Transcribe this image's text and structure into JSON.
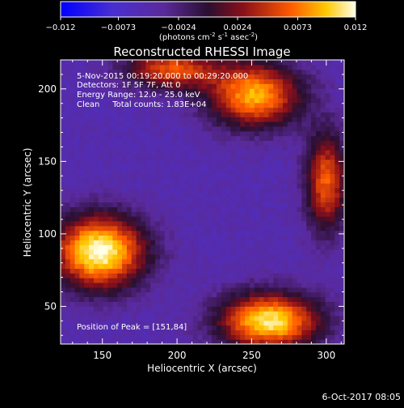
{
  "chart_data": {
    "type": "heatmap",
    "title": "Reconstructed RHESSI Image",
    "xlabel": "Heliocentric X (arcsec)",
    "ylabel": "Heliocentric Y (arcsec)",
    "xlim": [
      122,
      312
    ],
    "ylim": [
      24,
      220
    ],
    "xticks": [
      150,
      200,
      250,
      300
    ],
    "yticks": [
      50,
      100,
      150,
      200
    ],
    "colorbar": {
      "min": -0.012,
      "max": 0.012,
      "ticks": [
        "-0.012",
        "-0.0073",
        "-0.0024",
        "0.0024",
        "0.0073",
        "0.012"
      ],
      "unit_label": "(photons cm",
      "unit_exp1": "-2",
      "unit_mid": " s",
      "unit_exp2": "-1",
      "unit_mid2": " asec",
      "unit_exp3": "-2",
      "unit_end": ")"
    },
    "annotations": [
      "5-Nov-2015 00:19:20.000 to 00:29:20.000",
      "Detectors: 1F 5F 7F, Att 0",
      "Energy Range: 12.0 - 25.0 keV",
      "Clean     Total counts: 1.83E+04"
    ],
    "peak_label": "Position of Peak = [151,84]",
    "peak": [
      151,
      84
    ],
    "sources": [
      {
        "x": 148,
        "y": 88,
        "amp": 0.0122,
        "sx": 22,
        "sy": 18
      },
      {
        "x": 262,
        "y": 40,
        "amp": 0.011,
        "sx": 24,
        "sy": 14
      },
      {
        "x": 252,
        "y": 196,
        "amp": 0.009,
        "sx": 22,
        "sy": 16
      },
      {
        "x": 196,
        "y": 214,
        "amp": 0.006,
        "sx": 22,
        "sy": 10
      },
      {
        "x": 300,
        "y": 136,
        "amp": 0.0065,
        "sx": 10,
        "sy": 24
      }
    ],
    "background": -0.005,
    "colors": [
      "#0000ff",
      "#6633cc",
      "#331a66",
      "#b0191e",
      "#ff6600",
      "#ffcc00",
      "#ffffe0"
    ]
  },
  "footer": {
    "timestamp": "6-Oct-2017 08:05"
  }
}
